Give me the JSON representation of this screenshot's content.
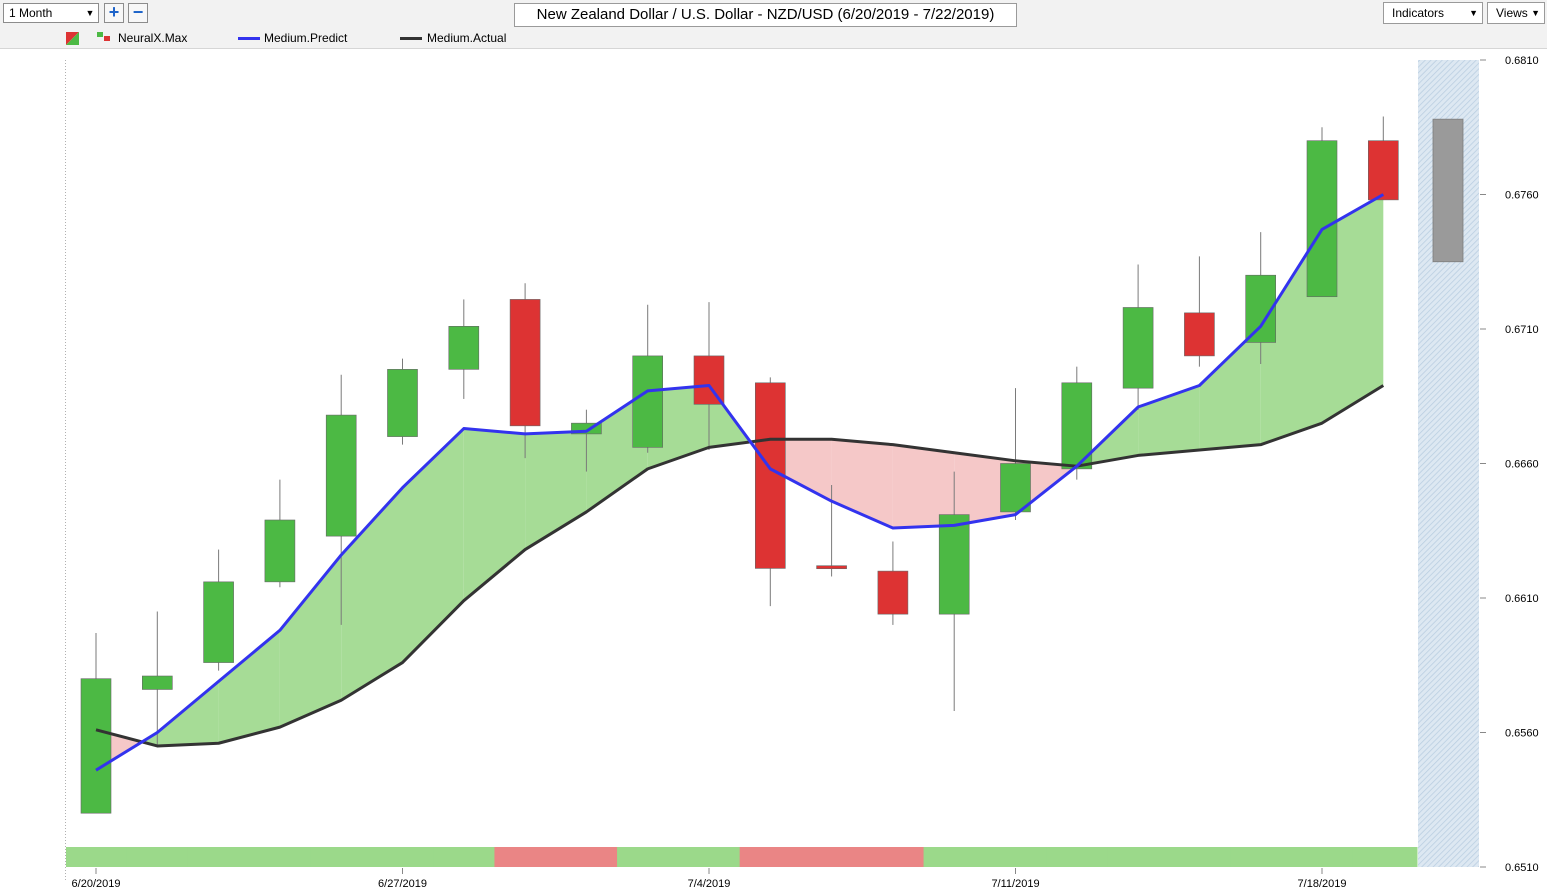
{
  "toolbar": {
    "period": "1 Month",
    "zoom_in": "+",
    "zoom_out": "−",
    "title": "New Zealand Dollar / U.S. Dollar - NZD/USD (6/20/2019 - 7/22/2019)",
    "indicators_label": "Indicators",
    "views_label": "Views"
  },
  "legend": {
    "neuralx": "NeuralX.Max",
    "predict": "Medium.Predict",
    "actual": "Medium.Actual"
  },
  "colors": {
    "bull": "#4cb944",
    "bear": "#dd3333",
    "predict": "#3333ee",
    "actual": "#333333",
    "fill_up": "#a6dc96",
    "fill_down": "#f5c8c8",
    "band_green": "#9bd98a",
    "band_red": "#ea8585",
    "forecast_gray": "#9a9a9a"
  },
  "chart_data": {
    "type": "candlestick",
    "y_ticks": [
      "0.6810",
      "0.6760",
      "0.6710",
      "0.6660",
      "0.6610",
      "0.6560",
      "0.6510"
    ],
    "ylim": [
      0.651,
      0.681
    ],
    "x_ticks": [
      "6/20/2019",
      "6/27/2019",
      "7/4/2019",
      "7/11/2019",
      "7/18/2019"
    ],
    "dates": [
      "6/20/2019",
      "6/21/2019",
      "6/24/2019",
      "6/25/2019",
      "6/26/2019",
      "6/27/2019",
      "6/28/2019",
      "7/1/2019",
      "7/2/2019",
      "7/3/2019",
      "7/4/2019",
      "7/5/2019",
      "7/8/2019",
      "7/9/2019",
      "7/10/2019",
      "7/11/2019",
      "7/12/2019",
      "7/15/2019",
      "7/16/2019",
      "7/17/2019",
      "7/18/2019",
      "7/19/2019"
    ],
    "candles": [
      {
        "o": 0.653,
        "h": 0.6597,
        "l": 0.653,
        "c": 0.658
      },
      {
        "o": 0.6576,
        "h": 0.6605,
        "l": 0.6555,
        "c": 0.6581
      },
      {
        "o": 0.6586,
        "h": 0.6628,
        "l": 0.6583,
        "c": 0.6616
      },
      {
        "o": 0.6616,
        "h": 0.6654,
        "l": 0.6614,
        "c": 0.6639
      },
      {
        "o": 0.6633,
        "h": 0.6693,
        "l": 0.66,
        "c": 0.6678
      },
      {
        "o": 0.667,
        "h": 0.6699,
        "l": 0.6667,
        "c": 0.6695
      },
      {
        "o": 0.6695,
        "h": 0.6721,
        "l": 0.6684,
        "c": 0.6711
      },
      {
        "o": 0.6721,
        "h": 0.6727,
        "l": 0.6662,
        "c": 0.6674
      },
      {
        "o": 0.6671,
        "h": 0.668,
        "l": 0.6657,
        "c": 0.6675
      },
      {
        "o": 0.6666,
        "h": 0.6719,
        "l": 0.6664,
        "c": 0.67
      },
      {
        "o": 0.67,
        "h": 0.672,
        "l": 0.6665,
        "c": 0.6682
      },
      {
        "o": 0.669,
        "h": 0.6692,
        "l": 0.6607,
        "c": 0.6621
      },
      {
        "o": 0.6622,
        "h": 0.6652,
        "l": 0.6618,
        "c": 0.6621
      },
      {
        "o": 0.662,
        "h": 0.6631,
        "l": 0.66,
        "c": 0.6604
      },
      {
        "o": 0.6604,
        "h": 0.6657,
        "l": 0.6568,
        "c": 0.6641
      },
      {
        "o": 0.6642,
        "h": 0.6688,
        "l": 0.6639,
        "c": 0.666
      },
      {
        "o": 0.6658,
        "h": 0.6696,
        "l": 0.6654,
        "c": 0.669
      },
      {
        "o": 0.6688,
        "h": 0.6734,
        "l": 0.668,
        "c": 0.6718
      },
      {
        "o": 0.6716,
        "h": 0.6737,
        "l": 0.6696,
        "c": 0.67
      },
      {
        "o": 0.6705,
        "h": 0.6746,
        "l": 0.6697,
        "c": 0.673
      },
      {
        "o": 0.6722,
        "h": 0.6785,
        "l": 0.6722,
        "c": 0.678
      },
      {
        "o": 0.678,
        "h": 0.6789,
        "l": 0.6758,
        "c": 0.6758
      }
    ],
    "forecast": {
      "top": 0.6788,
      "bottom": 0.6735
    },
    "series": [
      {
        "name": "Medium.Predict",
        "values": [
          0.6546,
          0.656,
          0.6579,
          0.6598,
          0.6626,
          0.6651,
          0.6673,
          0.6671,
          0.6672,
          0.6687,
          0.6689,
          0.6658,
          0.6646,
          0.6636,
          0.6637,
          0.6641,
          0.6659,
          0.6681,
          0.6689,
          0.6711,
          0.6747,
          0.676
        ]
      },
      {
        "name": "Medium.Actual",
        "values": [
          0.6561,
          0.6555,
          0.6556,
          0.6562,
          0.6572,
          0.6586,
          0.6609,
          0.6628,
          0.6642,
          0.6658,
          0.6666,
          0.6669,
          0.6669,
          0.6667,
          0.6664,
          0.6661,
          0.6659,
          0.6663,
          0.6665,
          0.6667,
          0.6675,
          0.6689
        ]
      }
    ],
    "signal_band": [
      "up",
      "up",
      "up",
      "up",
      "up",
      "up",
      "up",
      "down",
      "down",
      "up",
      "up",
      "down",
      "down",
      "down",
      "up",
      "up",
      "up",
      "up",
      "up",
      "up",
      "up",
      "up"
    ],
    "grid": false,
    "legend_position": "top-left"
  }
}
